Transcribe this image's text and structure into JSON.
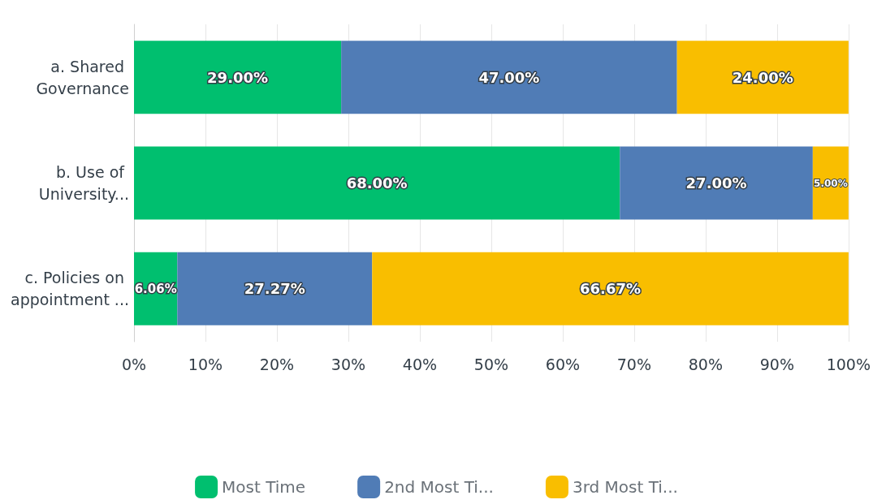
{
  "chart_data": {
    "type": "bar",
    "orientation": "horizontal",
    "stacked": true,
    "categories": [
      "a. Shared Governance",
      "b. Use of University...",
      "c. Policies on appointment ..."
    ],
    "series": [
      {
        "name": "Most Time",
        "color": "#00bf6f",
        "values": [
          29,
          68,
          6.06
        ],
        "value_labels": [
          "29.00%",
          "68.00%",
          "6.06%"
        ]
      },
      {
        "name": "2nd Most Ti...",
        "color": "#507cb6",
        "values": [
          47,
          27,
          27.27
        ],
        "value_labels": [
          "47.00%",
          "27.00%",
          "27.27%"
        ]
      },
      {
        "name": "3rd Most Ti...",
        "color": "#f9be00",
        "values": [
          24,
          5,
          66.67
        ],
        "value_labels": [
          "24.00%",
          "5.00%",
          "66.67%"
        ]
      }
    ],
    "xlim": [
      0,
      100
    ],
    "xticks": [
      {
        "value": 0,
        "label": "0%"
      },
      {
        "value": 10,
        "label": "10%"
      },
      {
        "value": 20,
        "label": "20%"
      },
      {
        "value": 30,
        "label": "30%"
      },
      {
        "value": 40,
        "label": "40%"
      },
      {
        "value": 50,
        "label": "50%"
      },
      {
        "value": 60,
        "label": "60%"
      },
      {
        "value": 70,
        "label": "70%"
      },
      {
        "value": 80,
        "label": "80%"
      },
      {
        "value": 90,
        "label": "90%"
      },
      {
        "value": 100,
        "label": "100%"
      }
    ],
    "grid": "x",
    "legend": "bottom"
  }
}
